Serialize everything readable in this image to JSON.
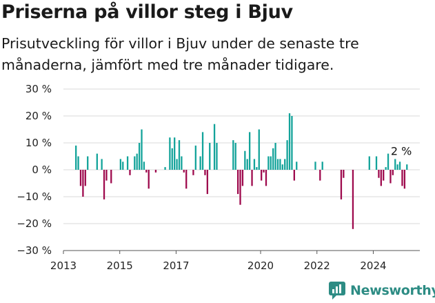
{
  "title": "Priserna på villor steg i Bjuv",
  "subtitle": "Prisutveckling för villor i Bjuv under de senaste tre månaderna, jämfört med tre månader tidigare.",
  "brand": {
    "name": "Newsworthy",
    "icon": "newsworthy-chart-icon"
  },
  "colors": {
    "positive": "#13a39a",
    "negative": "#9e0a4d",
    "grid": "#d9d9d9",
    "brand": "#2d8c84"
  },
  "chart_data": {
    "type": "bar",
    "ylim": [
      -30,
      30
    ],
    "yticks": [
      30,
      20,
      10,
      0,
      -10,
      -20,
      -30
    ],
    "ytick_labels": [
      "30 %",
      "20 %",
      "10 %",
      "0 %",
      "−10 %",
      "−20 %",
      "−30 %"
    ],
    "xticks": [
      "2013",
      "2015",
      "2017",
      "2020",
      "2022",
      "2024"
    ],
    "xtick_dates": [
      "2013-01",
      "2015-01",
      "2017-01",
      "2020-01",
      "2022-01",
      "2024-01"
    ],
    "grid": true,
    "annotation": {
      "text": "2 %",
      "date": "2024-10"
    },
    "x": [
      "2013-06",
      "2013-07",
      "2013-08",
      "2013-09",
      "2013-10",
      "2013-11",
      "2014-03",
      "2014-05",
      "2014-06",
      "2014-07",
      "2014-09",
      "2015-01",
      "2015-02",
      "2015-04",
      "2015-05",
      "2015-07",
      "2015-08",
      "2015-09",
      "2015-10",
      "2015-11",
      "2015-12",
      "2016-01",
      "2016-04",
      "2016-08",
      "2016-10",
      "2016-11",
      "2016-12",
      "2017-01",
      "2017-02",
      "2017-03",
      "2017-04",
      "2017-05",
      "2017-08",
      "2017-09",
      "2017-11",
      "2017-12",
      "2018-01",
      "2018-02",
      "2018-03",
      "2018-05",
      "2018-06",
      "2019-01",
      "2019-02",
      "2019-03",
      "2019-04",
      "2019-05",
      "2019-06",
      "2019-07",
      "2019-08",
      "2019-09",
      "2019-10",
      "2019-11",
      "2019-12",
      "2020-01",
      "2020-02",
      "2020-03",
      "2020-04",
      "2020-05",
      "2020-06",
      "2020-07",
      "2020-08",
      "2020-09",
      "2020-10",
      "2020-11",
      "2020-12",
      "2021-01",
      "2021-02",
      "2021-03",
      "2021-04",
      "2021-12",
      "2022-02",
      "2022-03",
      "2022-11",
      "2022-12",
      "2023-04",
      "2023-11",
      "2024-02",
      "2024-03",
      "2024-04",
      "2024-05",
      "2024-06",
      "2024-07",
      "2024-08",
      "2024-09",
      "2024-10",
      "2024-11",
      "2024-12",
      "2025-01",
      "2025-02",
      "2025-03"
    ],
    "series": [
      {
        "values": [
          9,
          5,
          -6,
          -10,
          -6,
          5,
          6,
          4,
          -11,
          -4,
          -5,
          4,
          3,
          5,
          -2,
          5,
          6,
          10,
          15,
          3,
          -1,
          -7,
          -1,
          1,
          12,
          8,
          12,
          4,
          11,
          5,
          -1,
          -7,
          -2,
          9,
          5,
          14,
          -2,
          -9,
          10,
          17,
          10,
          11,
          10,
          -9,
          -13,
          -6,
          7,
          4,
          14,
          -6,
          4,
          1,
          15,
          -4,
          -1,
          -6,
          5,
          5,
          8,
          10,
          4,
          4,
          2,
          4,
          11,
          21,
          20,
          -4,
          3,
          3,
          -4,
          3,
          -11,
          -3,
          -22,
          5,
          5,
          -3,
          -6,
          -4,
          1,
          6,
          -5,
          -2,
          4,
          2,
          3,
          -6,
          -7,
          2
        ]
      }
    ]
  }
}
